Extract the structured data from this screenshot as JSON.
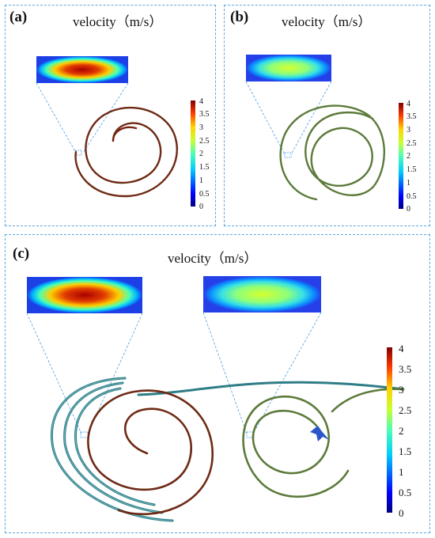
{
  "panels": {
    "a": {
      "label": "(a)",
      "title": "velocity（m/s）"
    },
    "b": {
      "label": "(b)",
      "title": "velocity（m/s）"
    },
    "c": {
      "label": "(c)",
      "title": "velocity（m/s）"
    }
  },
  "colorbar": {
    "ticks": [
      "4",
      "3.5",
      "3",
      "2.5",
      "2",
      "1.5",
      "1",
      "0.5",
      "0"
    ],
    "min": 0,
    "max": 4
  },
  "colors": {
    "panel_border": "#5aa7e0",
    "spiral_a": "#7a2412",
    "spiral_b": "#5c7a3a",
    "spiral_c_outer": "#2f7d86",
    "accent_blue": "#2b56c8"
  }
}
